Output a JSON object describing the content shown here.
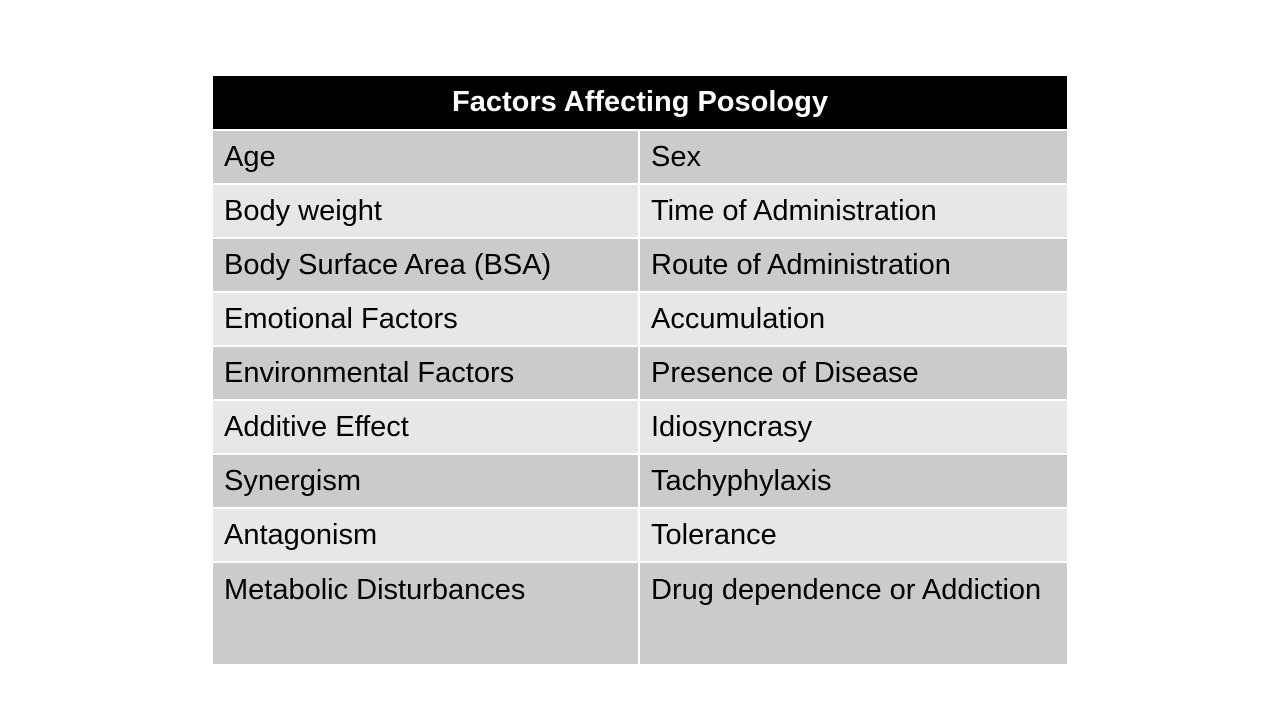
{
  "table": {
    "title": "Factors Affecting Posology",
    "rows": [
      [
        "Age",
        "Sex"
      ],
      [
        "Body weight",
        "Time of Administration"
      ],
      [
        "Body Surface Area (BSA)",
        "Route of Administration"
      ],
      [
        "Emotional Factors",
        "Accumulation"
      ],
      [
        "Environmental Factors",
        "Presence of Disease"
      ],
      [
        "Additive Effect",
        "Idiosyncrasy"
      ],
      [
        "Synergism",
        "Tachyphylaxis"
      ],
      [
        "Antagonism",
        "Tolerance"
      ],
      [
        "Metabolic Disturbances",
        "Drug dependence or Addiction"
      ]
    ]
  },
  "colors": {
    "header_bg": "#000000",
    "header_text": "#ffffff",
    "row_dark": "#cbcbcb",
    "row_light": "#e7e7e7"
  }
}
